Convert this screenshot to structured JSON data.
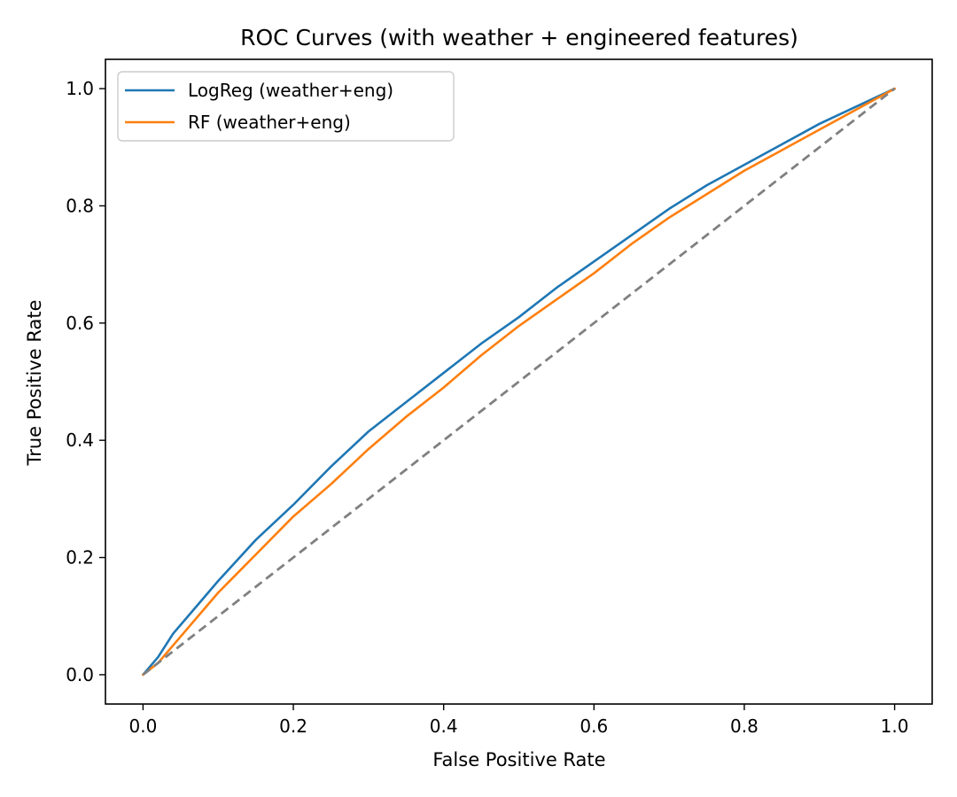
{
  "chart_data": {
    "type": "line",
    "title": "ROC Curves (with weather + engineered features)",
    "xlabel": "False Positive Rate",
    "ylabel": "True Positive Rate",
    "xlim": [
      -0.05,
      1.05
    ],
    "ylim": [
      -0.05,
      1.05
    ],
    "xticks": [
      0.0,
      0.2,
      0.4,
      0.6,
      0.8,
      1.0
    ],
    "yticks": [
      0.0,
      0.2,
      0.4,
      0.6,
      0.8,
      1.0
    ],
    "xtick_labels": [
      "0.0",
      "0.2",
      "0.4",
      "0.6",
      "0.8",
      "1.0"
    ],
    "ytick_labels": [
      "0.0",
      "0.2",
      "0.4",
      "0.6",
      "0.8",
      "1.0"
    ],
    "grid": false,
    "legend_position": "top-left",
    "series": [
      {
        "name": "LogReg (weather+eng)",
        "color": "#1f77b4",
        "x": [
          0.0,
          0.02,
          0.04,
          0.06,
          0.08,
          0.1,
          0.15,
          0.2,
          0.25,
          0.3,
          0.35,
          0.4,
          0.45,
          0.5,
          0.55,
          0.6,
          0.65,
          0.7,
          0.75,
          0.8,
          0.85,
          0.9,
          0.95,
          1.0
        ],
        "y": [
          0.0,
          0.03,
          0.07,
          0.1,
          0.13,
          0.16,
          0.23,
          0.29,
          0.355,
          0.415,
          0.465,
          0.515,
          0.565,
          0.61,
          0.66,
          0.705,
          0.75,
          0.795,
          0.835,
          0.87,
          0.905,
          0.94,
          0.97,
          1.0
        ]
      },
      {
        "name": "RF (weather+eng)",
        "color": "#ff7f0e",
        "x": [
          0.0,
          0.02,
          0.04,
          0.06,
          0.08,
          0.1,
          0.15,
          0.2,
          0.25,
          0.3,
          0.35,
          0.4,
          0.45,
          0.5,
          0.55,
          0.6,
          0.65,
          0.7,
          0.75,
          0.8,
          0.85,
          0.9,
          0.95,
          1.0
        ],
        "y": [
          0.0,
          0.02,
          0.05,
          0.08,
          0.11,
          0.14,
          0.205,
          0.27,
          0.325,
          0.385,
          0.44,
          0.49,
          0.545,
          0.595,
          0.64,
          0.685,
          0.735,
          0.78,
          0.82,
          0.86,
          0.895,
          0.93,
          0.965,
          1.0
        ]
      }
    ],
    "reference_line": {
      "x": [
        0.0,
        1.0
      ],
      "y": [
        0.0,
        1.0
      ],
      "color": "#808080",
      "dashed": true
    }
  }
}
